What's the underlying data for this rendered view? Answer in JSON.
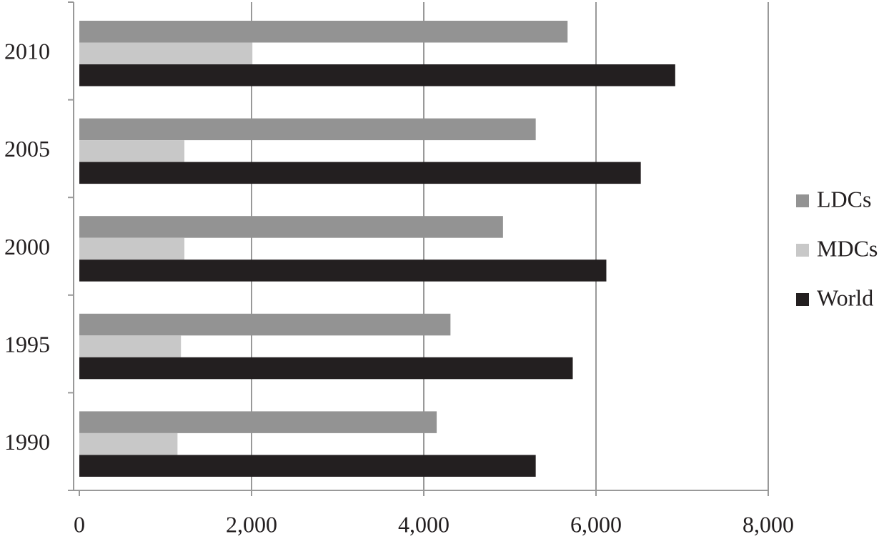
{
  "chart_data": {
    "type": "barh",
    "categories": [
      "1990",
      "1995",
      "2000",
      "2005",
      "2010"
    ],
    "series": [
      {
        "name": "LDCs",
        "color": "#939393",
        "values": [
          4150,
          4310,
          4920,
          5300,
          5670
        ]
      },
      {
        "name": "MDCs",
        "color": "#c8c8c8",
        "values": [
          1140,
          1180,
          1220,
          1220,
          2010
        ]
      },
      {
        "name": "World",
        "color": "#231f20",
        "values": [
          5300,
          5730,
          6120,
          6520,
          6920
        ]
      }
    ],
    "xlim": [
      0,
      8000
    ],
    "xticks": [
      0,
      {
        "value": 2000,
        "label": "2,000"
      },
      {
        "value": 4000,
        "label": "4,000"
      },
      {
        "value": 6000,
        "label": "6,000"
      },
      {
        "value": 8000,
        "label": "8,000"
      }
    ],
    "grid": true,
    "legend": "right"
  }
}
